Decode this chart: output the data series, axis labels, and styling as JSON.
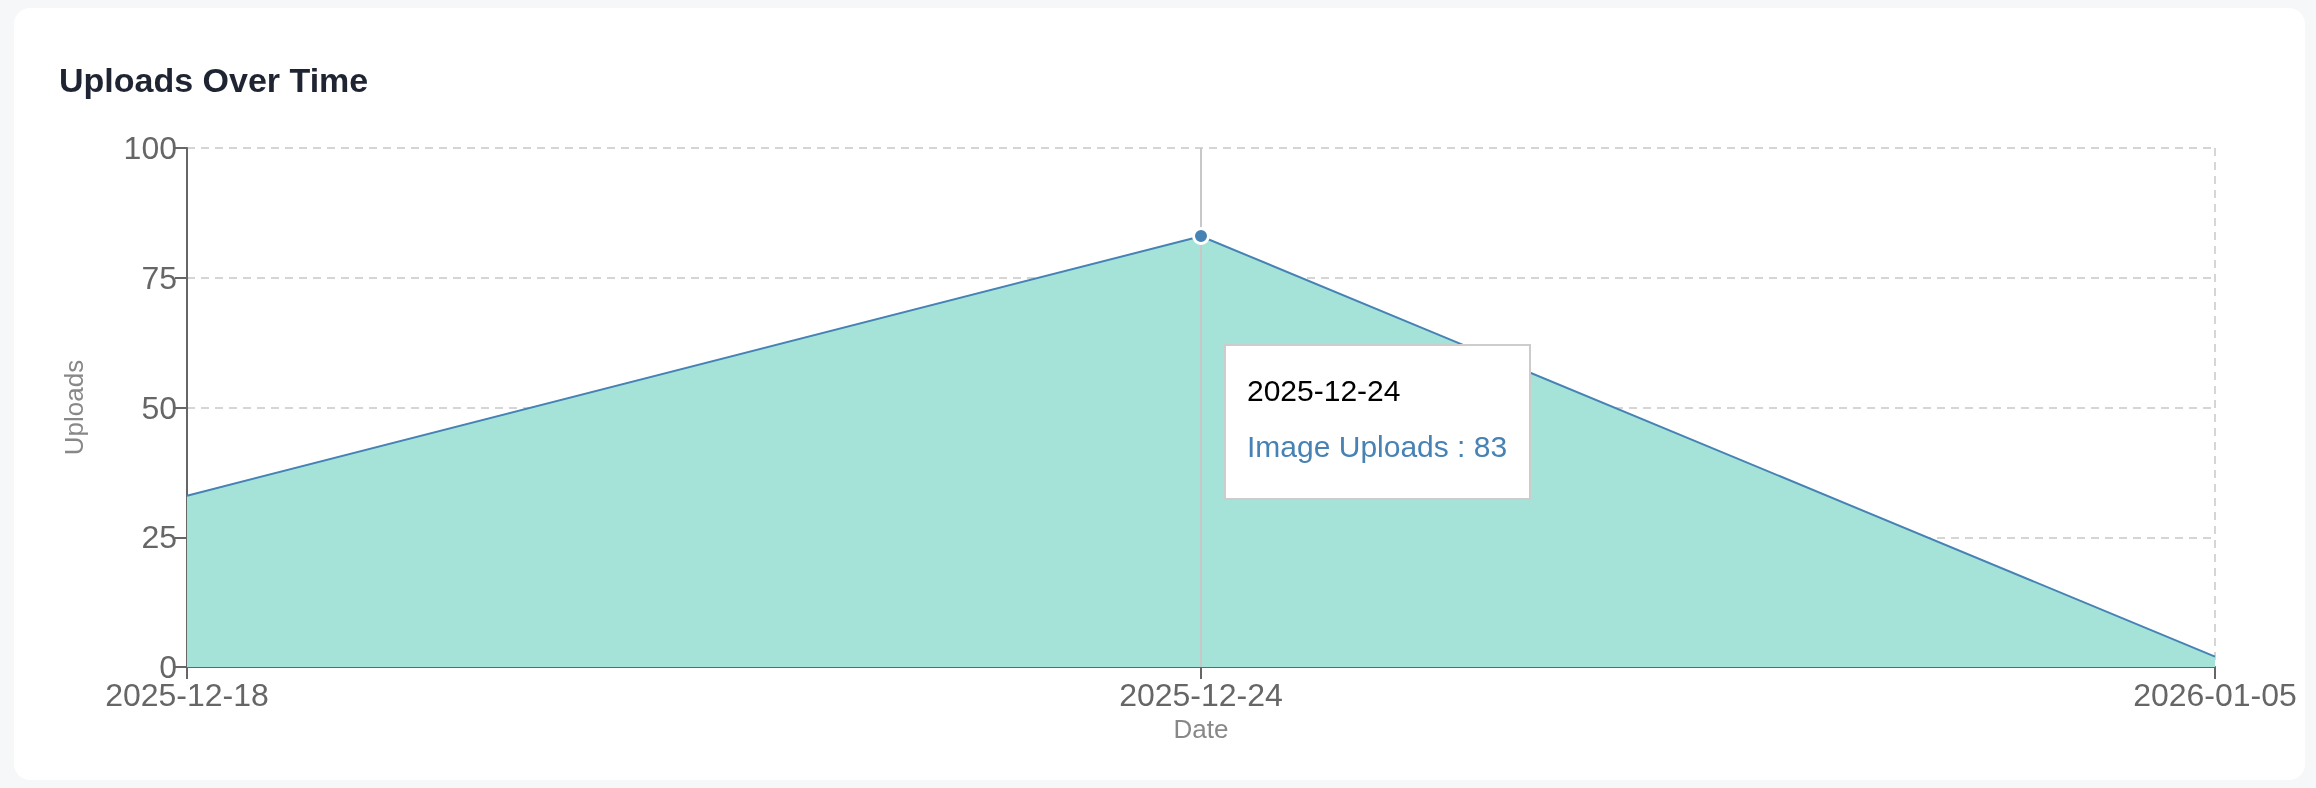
{
  "chart_data": {
    "type": "area",
    "title": "Uploads Over Time",
    "xlabel": "Date",
    "ylabel": "Uploads",
    "categories": [
      "2025-12-18",
      "2025-12-24",
      "2026-01-05"
    ],
    "values": [
      33,
      83,
      2
    ],
    "color": "#a5e3d9",
    "ylim": [
      0,
      100
    ],
    "yticks": [
      0,
      25,
      50,
      75,
      100
    ],
    "grid": true,
    "ref_lines": [
      {
        "axis": "x",
        "value": "2025-12-24",
        "label": "2025-12-24",
        "color": "#c8c8c8",
        "line_style": "solid"
      }
    ],
    "annotations": [
      "Image Uploads : 83"
    ]
  }
}
